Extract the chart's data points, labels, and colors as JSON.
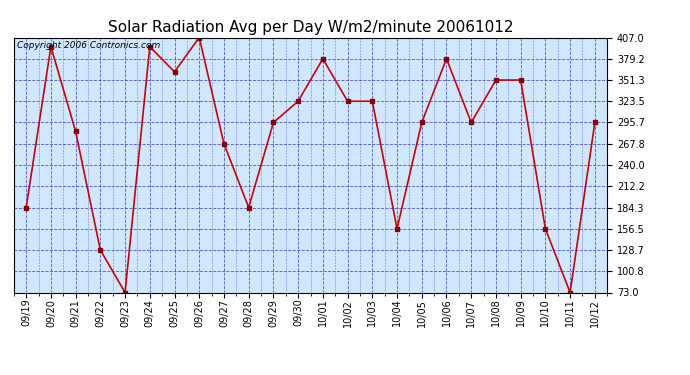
{
  "title": "Solar Radiation Avg per Day W/m2/minute 20061012",
  "copyright_text": "Copyright 2006 Contronics.com",
  "dates": [
    "09/19",
    "09/20",
    "09/21",
    "09/22",
    "09/23",
    "09/24",
    "09/25",
    "09/26",
    "09/27",
    "09/28",
    "09/29",
    "09/30",
    "10/01",
    "10/02",
    "10/03",
    "10/04",
    "10/05",
    "10/06",
    "10/07",
    "10/08",
    "10/09",
    "10/10",
    "10/11",
    "10/12"
  ],
  "values": [
    184.3,
    395.0,
    284.0,
    128.7,
    73.0,
    395.0,
    362.0,
    407.0,
    267.8,
    184.3,
    295.7,
    323.5,
    379.2,
    323.5,
    323.5,
    156.5,
    295.7,
    379.2,
    295.7,
    351.3,
    351.3,
    156.5,
    73.0,
    295.7
  ],
  "yticks": [
    73.0,
    100.8,
    128.7,
    156.5,
    184.3,
    212.2,
    240.0,
    267.8,
    295.7,
    323.5,
    351.3,
    379.2,
    407.0
  ],
  "ylim": [
    73.0,
    407.0
  ],
  "line_color": "#cc0000",
  "marker_color": "#880000",
  "bg_color": "#d0e8ff",
  "grid_color": "#3333cc",
  "title_fontsize": 11,
  "axis_label_fontsize": 7,
  "copyright_fontsize": 6.5
}
